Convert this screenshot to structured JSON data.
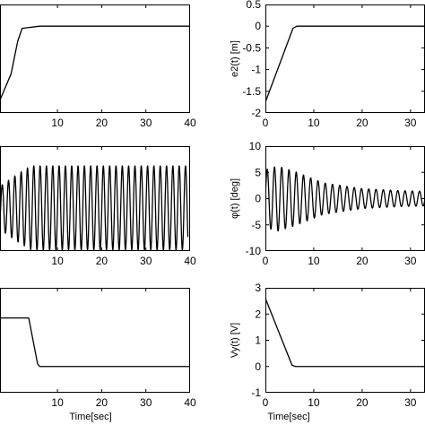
{
  "chart_data": [
    {
      "id": "tl",
      "type": "line",
      "xlabel": "",
      "ylabel": "",
      "xlim": [
        -3,
        40
      ],
      "ylim": [
        -2,
        0.5
      ],
      "xticks": [
        10,
        20,
        30,
        40
      ],
      "xtick_labels": [
        "10",
        "20",
        "30",
        "40"
      ],
      "yticks": [],
      "ytick_labels": [],
      "series": [
        {
          "kind": "ramp",
          "x": [
            -3,
            -0.5,
            1,
            2,
            6,
            40
          ],
          "y": [
            -1.7,
            -1.1,
            -0.35,
            -0.05,
            0.0,
            0.0
          ]
        }
      ]
    },
    {
      "id": "tr",
      "type": "line",
      "xlabel": "",
      "ylabel": "e2(t) [m]",
      "xlim": [
        0,
        33
      ],
      "ylim": [
        -2,
        0.5
      ],
      "xticks": [
        0,
        10,
        20,
        30
      ],
      "xtick_labels": [
        "0",
        "10",
        "20",
        "30"
      ],
      "yticks": [
        0.5,
        0,
        -0.5,
        -1,
        -1.5,
        -2
      ],
      "ytick_labels": [
        "0.5",
        "0",
        "-0.5",
        "-1",
        "-1.5",
        "-2"
      ],
      "series": [
        {
          "kind": "ramp",
          "x": [
            0,
            5.7,
            6.5,
            33
          ],
          "y": [
            -1.75,
            -0.05,
            0.0,
            0.0
          ]
        }
      ]
    },
    {
      "id": "ml",
      "type": "line",
      "xlabel": "",
      "ylabel": "",
      "xlim": [
        -3,
        40
      ],
      "ylim": [
        -7,
        10
      ],
      "xticks": [
        10,
        20,
        30,
        40
      ],
      "xtick_labels": [
        "10",
        "20",
        "30",
        "40"
      ],
      "yticks": [],
      "ytick_labels": [],
      "series": [
        {
          "kind": "oscillation",
          "period": 1.43,
          "amplitudes_at": [
            [
              -3,
              3.5
            ],
            [
              1,
              5.5
            ],
            [
              4,
              6.8
            ],
            [
              40,
              6.8
            ]
          ],
          "x_start": -3,
          "x_end": 39.5
        }
      ]
    },
    {
      "id": "mr",
      "type": "line",
      "xlabel": "",
      "ylabel": "φ(t) [deg]",
      "xlim": [
        0,
        33
      ],
      "ylim": [
        -10,
        10
      ],
      "xticks": [
        0,
        10,
        20,
        30
      ],
      "xtick_labels": [
        "0",
        "10",
        "20",
        "30"
      ],
      "yticks": [
        10,
        5,
        0,
        -5,
        -10
      ],
      "ytick_labels": [
        "10",
        "5",
        "0",
        "-5",
        "-10"
      ],
      "series": [
        {
          "kind": "oscillation",
          "period": 1.5,
          "amplitudes_at": [
            [
              0,
              5.5
            ],
            [
              2.5,
              6.2
            ],
            [
              6,
              5.2
            ],
            [
              12,
              3.0
            ],
            [
              20,
              1.9
            ],
            [
              28,
              1.5
            ],
            [
              33,
              1.4
            ]
          ],
          "x_start": 0,
          "x_end": 33
        }
      ]
    },
    {
      "id": "bl",
      "type": "line",
      "xlabel": "Time[sec]",
      "ylabel": "",
      "xlim": [
        -3,
        40
      ],
      "ylim": [
        -1,
        3
      ],
      "xticks": [
        10,
        20,
        30,
        40
      ],
      "xtick_labels": [
        "10",
        "20",
        "30",
        "40"
      ],
      "yticks": [],
      "ytick_labels": [],
      "series": [
        {
          "kind": "ramp",
          "x": [
            -3,
            3.5,
            5.5,
            6,
            40
          ],
          "y": [
            1.85,
            1.85,
            0.1,
            0.0,
            0.0
          ]
        }
      ]
    },
    {
      "id": "br",
      "type": "line",
      "xlabel": "Time[sec]",
      "ylabel": "Vy(t) [V]",
      "xlim": [
        0,
        33
      ],
      "ylim": [
        -1,
        3
      ],
      "xticks": [
        0,
        10,
        20,
        30
      ],
      "xtick_labels": [
        "0",
        "10",
        "20",
        "30"
      ],
      "yticks": [
        3,
        2,
        1,
        0,
        -1
      ],
      "ytick_labels": [
        "3",
        "2",
        "1",
        "0",
        "-1"
      ],
      "series": [
        {
          "kind": "ramp",
          "x": [
            0,
            5.5,
            6.2,
            33
          ],
          "y": [
            2.6,
            0.05,
            0.0,
            0.0
          ]
        }
      ]
    }
  ]
}
